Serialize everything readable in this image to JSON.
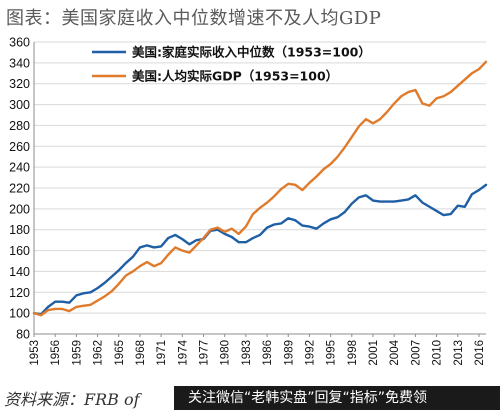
{
  "title": "图表：美国家庭收入中位数增速不及人均GDP",
  "source_text": "资料来源：FRB of",
  "promo_text": "关注微信“老韩实盘”回复“指标”免费领",
  "chart_data": {
    "type": "line",
    "title": "图表：美国家庭收入中位数增速不及人均GDP",
    "xlabel": "",
    "ylabel": "",
    "ylim": [
      80,
      360
    ],
    "y_ticks": [
      "80",
      "100",
      "120",
      "140",
      "160",
      "180",
      "200",
      "220",
      "240",
      "260",
      "280",
      "300",
      "320",
      "340",
      "360"
    ],
    "xlim": [
      1953,
      2017
    ],
    "x_ticks": [
      "1953",
      "1956",
      "1959",
      "1962",
      "1965",
      "1968",
      "1971",
      "1974",
      "1977",
      "1980",
      "1983",
      "1986",
      "1989",
      "1992",
      "1995",
      "1998",
      "2001",
      "2004",
      "2007",
      "2010",
      "2013",
      "2016"
    ],
    "grid": "horizontal",
    "legend_position": "top-left",
    "series": [
      {
        "name": "美国:家庭实际收入中位数（1953=100）",
        "color": "#1f5fa6",
        "x": [
          1953,
          1954,
          1955,
          1956,
          1957,
          1958,
          1959,
          1960,
          1961,
          1962,
          1963,
          1964,
          1965,
          1966,
          1967,
          1968,
          1969,
          1970,
          1971,
          1972,
          1973,
          1974,
          1975,
          1976,
          1977,
          1978,
          1979,
          1980,
          1981,
          1982,
          1983,
          1984,
          1985,
          1986,
          1987,
          1988,
          1989,
          1990,
          1991,
          1992,
          1993,
          1994,
          1995,
          1996,
          1997,
          1998,
          1999,
          2000,
          2001,
          2002,
          2003,
          2004,
          2005,
          2006,
          2007,
          2008,
          2009,
          2010,
          2011,
          2012,
          2013,
          2014,
          2015,
          2016,
          2017
        ],
        "values": [
          100,
          99,
          106,
          111,
          111,
          110,
          117,
          119,
          120,
          124,
          129,
          135,
          141,
          148,
          154,
          163,
          165,
          163,
          164,
          172,
          175,
          171,
          166,
          170,
          171,
          179,
          180,
          176,
          173,
          168,
          168,
          172,
          175,
          182,
          185,
          186,
          191,
          189,
          184,
          183,
          181,
          186,
          190,
          192,
          197,
          205,
          211,
          213,
          208,
          207,
          207,
          207,
          208,
          209,
          213,
          206,
          202,
          198,
          194,
          195,
          203,
          202,
          214,
          218,
          223
        ]
      },
      {
        "name": "美国:人均实际GDP（1953=100）",
        "color": "#e07b2c",
        "x": [
          1953,
          1954,
          1955,
          1956,
          1957,
          1958,
          1959,
          1960,
          1961,
          1962,
          1963,
          1964,
          1965,
          1966,
          1967,
          1968,
          1969,
          1970,
          1971,
          1972,
          1973,
          1974,
          1975,
          1976,
          1977,
          1978,
          1979,
          1980,
          1981,
          1982,
          1983,
          1984,
          1985,
          1986,
          1987,
          1988,
          1989,
          1990,
          1991,
          1992,
          1993,
          1994,
          1995,
          1996,
          1997,
          1998,
          1999,
          2000,
          2001,
          2002,
          2003,
          2004,
          2005,
          2006,
          2007,
          2008,
          2009,
          2010,
          2011,
          2012,
          2013,
          2014,
          2015,
          2016,
          2017
        ],
        "values": [
          100,
          98,
          103,
          104,
          104,
          102,
          106,
          107,
          108,
          112,
          116,
          121,
          128,
          136,
          140,
          145,
          149,
          145,
          148,
          156,
          163,
          160,
          158,
          165,
          172,
          180,
          182,
          178,
          181,
          176,
          183,
          195,
          201,
          206,
          212,
          219,
          224,
          223,
          218,
          225,
          231,
          238,
          243,
          250,
          259,
          269,
          279,
          286,
          282,
          286,
          293,
          301,
          308,
          312,
          314,
          301,
          299,
          306,
          308,
          312,
          318,
          324,
          330,
          334,
          341
        ]
      }
    ]
  }
}
